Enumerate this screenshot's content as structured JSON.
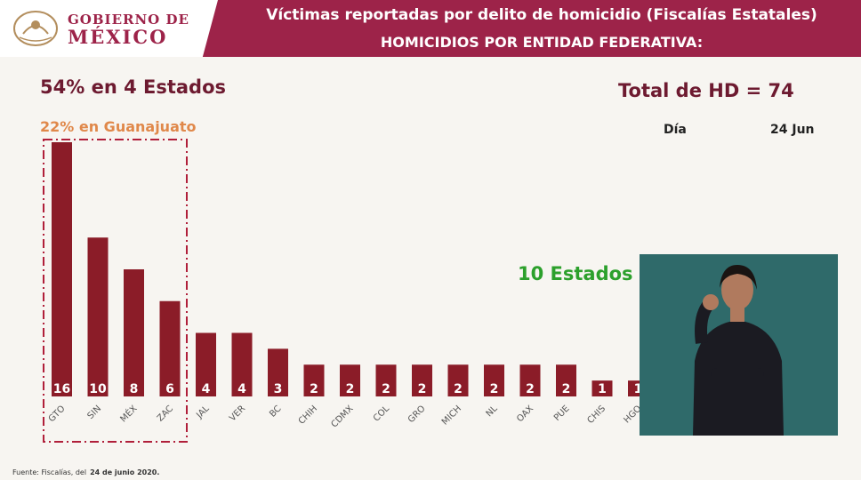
{
  "header": {
    "gov_line1": "GOBIERNO DE",
    "gov_line2": "MÉXICO",
    "title": "Víctimas reportadas por delito de homicidio (Fiscalías Estatales)",
    "subtitle": "HOMICIDIOS POR ENTIDAD FEDERATIVA:"
  },
  "annotations": {
    "top4": "54% en 4 Estados",
    "guanajuato": "22% en Guanajuato",
    "total": "Total de HD = 74",
    "dia_label": "Día",
    "dia_value": "24 Jun",
    "ten_states": "10 Estados"
  },
  "footer": {
    "source": "Fuente: Fiscalías, del",
    "date": "24 de junio 2020."
  },
  "colors": {
    "header_bg": "#9d2349",
    "bar": "#8b1c28",
    "dark_text": "#6d1a30",
    "orange": "#e0884a",
    "green": "#2ca02c",
    "box_border": "#b01f3a"
  },
  "chart_data": {
    "type": "bar",
    "title": "",
    "xlabel": "",
    "ylabel": "",
    "categories": [
      "GTO",
      "SIN",
      "MÉX",
      "ZAC",
      "JAL",
      "VER",
      "BC",
      "CHIH",
      "CDMX",
      "COL",
      "GRO",
      "MICH",
      "NL",
      "OAX",
      "PUE",
      "CHIS",
      "HGO"
    ],
    "values": [
      16,
      10,
      8,
      6,
      4,
      4,
      3,
      2,
      2,
      2,
      2,
      2,
      2,
      2,
      2,
      1,
      1
    ],
    "ylim": [
      0,
      16
    ],
    "grid": false,
    "legend": "none"
  }
}
